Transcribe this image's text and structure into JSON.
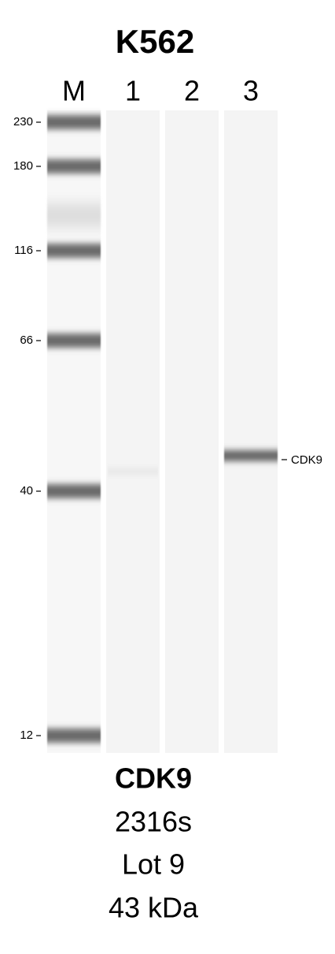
{
  "header": {
    "title": "K562",
    "lanes": [
      "M",
      "1",
      "2",
      "3"
    ]
  },
  "markers": [
    "230",
    "180",
    "116",
    "66",
    "40",
    "12"
  ],
  "band_label": "CDK9",
  "footer": {
    "protein": "CDK9",
    "catalog": "2316s",
    "lot": "Lot 9",
    "weight": "43 kDa"
  }
}
